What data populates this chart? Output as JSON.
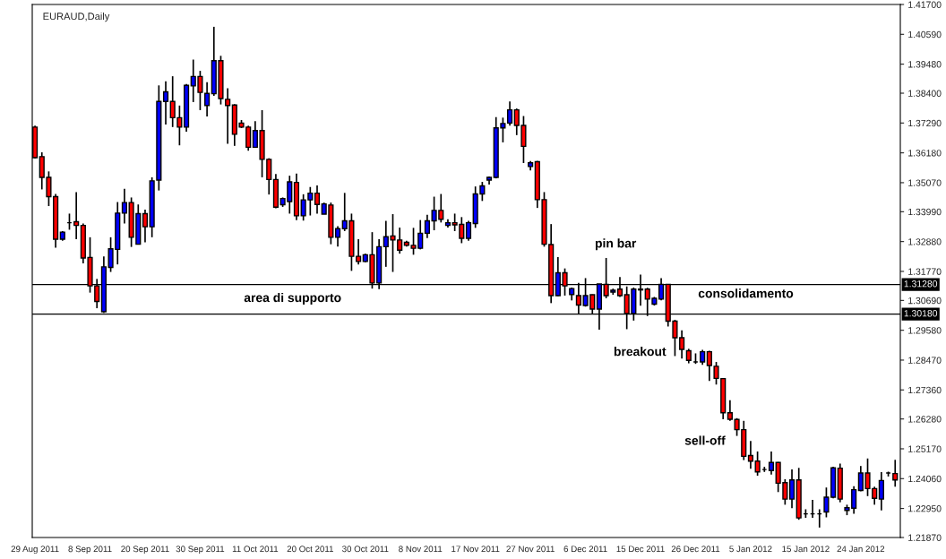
{
  "chart_data": {
    "type": "candlestick",
    "title": "EURAUD,Daily",
    "categories": [
      "29 Aug 2011",
      null,
      null,
      null,
      null,
      null,
      null,
      null,
      "8 Sep 2011",
      null,
      null,
      null,
      null,
      null,
      null,
      null,
      "20 Sep 2011",
      null,
      null,
      null,
      null,
      null,
      null,
      null,
      "30 Sep 2011",
      null,
      null,
      null,
      null,
      null,
      null,
      null,
      "11 Oct 2011",
      null,
      null,
      null,
      null,
      null,
      null,
      null,
      "20 Oct 2011",
      null,
      null,
      null,
      null,
      null,
      null,
      null,
      "30 Oct 2011",
      null,
      null,
      null,
      null,
      null,
      null,
      null,
      "8 Nov 2011",
      null,
      null,
      null,
      null,
      null,
      null,
      null,
      "17 Nov 2011",
      null,
      null,
      null,
      null,
      null,
      null,
      null,
      "27 Nov 2011",
      null,
      null,
      null,
      null,
      null,
      null,
      null,
      "6 Dec 2011",
      null,
      null,
      null,
      null,
      null,
      null,
      null,
      "15 Dec 2011",
      null,
      null,
      null,
      null,
      null,
      null,
      null,
      "26 Dec 2011",
      null,
      null,
      null,
      null,
      null,
      null,
      null,
      "5 Jan 2012",
      null,
      null,
      null,
      null,
      null,
      null,
      null,
      "15 Jan 2012",
      null,
      null,
      null,
      null,
      null,
      null,
      null,
      "24 Jan 2012",
      null,
      null,
      null,
      null,
      null
    ],
    "ohlc": [
      [
        1.3714,
        1.3719,
        1.3598,
        1.36
      ],
      [
        1.3604,
        1.362,
        1.3482,
        1.3527
      ],
      [
        1.3527,
        1.3549,
        1.342,
        1.3455
      ],
      [
        1.3455,
        1.3465,
        1.3265,
        1.3297
      ],
      [
        1.3297,
        1.3327,
        1.3291,
        1.3323
      ],
      [
        1.3358,
        1.3392,
        1.3332,
        1.3358
      ],
      [
        1.3362,
        1.3472,
        1.3297,
        1.3348
      ],
      [
        1.3348,
        1.3355,
        1.3207,
        1.3227
      ],
      [
        1.3229,
        1.3304,
        1.3098,
        1.3123
      ],
      [
        1.3123,
        1.3149,
        1.304,
        1.3065
      ],
      [
        1.3027,
        1.3233,
        1.3023,
        1.3194
      ],
      [
        1.3192,
        1.3304,
        1.3175,
        1.3261
      ],
      [
        1.3259,
        1.3435,
        1.3203,
        1.3394
      ],
      [
        1.3394,
        1.3484,
        1.3355,
        1.3433
      ],
      [
        1.3433,
        1.3452,
        1.3268,
        1.3304
      ],
      [
        1.3278,
        1.3426,
        1.3278,
        1.3392
      ],
      [
        1.3392,
        1.3407,
        1.3285,
        1.3343
      ],
      [
        1.3343,
        1.3527,
        1.3304,
        1.3514
      ],
      [
        1.3517,
        1.3869,
        1.3478,
        1.3809
      ],
      [
        1.3809,
        1.3884,
        1.3723,
        1.3845
      ],
      [
        1.3809,
        1.3903,
        1.3714,
        1.3749
      ],
      [
        1.3749,
        1.3794,
        1.3646,
        1.3714
      ],
      [
        1.3714,
        1.3874,
        1.3697,
        1.3869
      ],
      [
        1.3867,
        1.3965,
        1.3807,
        1.3902
      ],
      [
        1.3902,
        1.3923,
        1.3777,
        1.3843
      ],
      [
        1.3794,
        1.3881,
        1.3753,
        1.3839
      ],
      [
        1.3838,
        1.4087,
        1.383,
        1.3961
      ],
      [
        1.3961,
        1.3979,
        1.3798,
        1.382
      ],
      [
        1.3817,
        1.3858,
        1.3652,
        1.3794
      ],
      [
        1.3796,
        1.3799,
        1.3644,
        1.3687
      ],
      [
        1.3729,
        1.374,
        1.371,
        1.3714
      ],
      [
        1.3714,
        1.3719,
        1.3626,
        1.3639
      ],
      [
        1.3639,
        1.3736,
        1.3637,
        1.3701
      ],
      [
        1.3701,
        1.3777,
        1.3527,
        1.3594
      ],
      [
        1.3594,
        1.3598,
        1.3463,
        1.3519
      ],
      [
        1.3519,
        1.3539,
        1.3412,
        1.3416
      ],
      [
        1.3425,
        1.3452,
        1.3417,
        1.3448
      ],
      [
        1.3437,
        1.3533,
        1.3392,
        1.351
      ],
      [
        1.3508,
        1.3541,
        1.3368,
        1.3384
      ],
      [
        1.3384,
        1.3464,
        1.3366,
        1.3443
      ],
      [
        1.3443,
        1.3491,
        1.3385,
        1.3468
      ],
      [
        1.3468,
        1.3497,
        1.3392,
        1.3426
      ],
      [
        1.339,
        1.3433,
        1.339,
        1.3428
      ],
      [
        1.3424,
        1.3433,
        1.3278,
        1.3304
      ],
      [
        1.3304,
        1.3345,
        1.3269,
        1.3336
      ],
      [
        1.3336,
        1.3469,
        1.3327,
        1.3365
      ],
      [
        1.3365,
        1.3392,
        1.3179,
        1.3233
      ],
      [
        1.3233,
        1.3297,
        1.3203,
        1.3214
      ],
      [
        1.3214,
        1.3243,
        1.3211,
        1.3239
      ],
      [
        1.3239,
        1.3323,
        1.3113,
        1.3134
      ],
      [
        1.3134,
        1.3297,
        1.3111,
        1.3269
      ],
      [
        1.3269,
        1.3365,
        1.3194,
        1.3306
      ],
      [
        1.3309,
        1.339,
        1.3175,
        1.3294
      ],
      [
        1.3294,
        1.334,
        1.3243,
        1.3256
      ],
      [
        1.3285,
        1.3291,
        1.3269,
        1.3274
      ],
      [
        1.3274,
        1.3339,
        1.3239,
        1.3263
      ],
      [
        1.3263,
        1.3368,
        1.3259,
        1.3319
      ],
      [
        1.3319,
        1.3388,
        1.3301,
        1.3365
      ],
      [
        1.3365,
        1.3455,
        1.333,
        1.3404
      ],
      [
        1.3404,
        1.3465,
        1.3359,
        1.3371
      ],
      [
        1.3348,
        1.3371,
        1.334,
        1.3358
      ],
      [
        1.3358,
        1.3392,
        1.3327,
        1.335
      ],
      [
        1.3352,
        1.3379,
        1.3282,
        1.33
      ],
      [
        1.33,
        1.3365,
        1.3291,
        1.3358
      ],
      [
        1.3355,
        1.3493,
        1.3339,
        1.3465
      ],
      [
        1.3465,
        1.351,
        1.3439,
        1.3495
      ],
      [
        1.3517,
        1.353,
        1.35,
        1.3527
      ],
      [
        1.3527,
        1.3751,
        1.3523,
        1.3711
      ],
      [
        1.3711,
        1.3749,
        1.3657,
        1.3727
      ],
      [
        1.3729,
        1.3809,
        1.3719,
        1.3778
      ],
      [
        1.3778,
        1.3783,
        1.3684,
        1.372
      ],
      [
        1.372,
        1.3755,
        1.358,
        1.3642
      ],
      [
        1.3567,
        1.3588,
        1.3553,
        1.3581
      ],
      [
        1.3585,
        1.3588,
        1.3413,
        1.3444
      ],
      [
        1.3444,
        1.3472,
        1.3269,
        1.3278
      ],
      [
        1.3277,
        1.3353,
        1.3059,
        1.3087
      ],
      [
        1.3087,
        1.323,
        1.3085,
        1.3172
      ],
      [
        1.3172,
        1.3188,
        1.3087,
        1.3123
      ],
      [
        1.3091,
        1.3117,
        1.3069,
        1.3113
      ],
      [
        1.3087,
        1.3134,
        1.302,
        1.3052
      ],
      [
        1.305,
        1.3152,
        1.3046,
        1.3087
      ],
      [
        1.309,
        1.3091,
        1.302,
        1.3037
      ],
      [
        1.3037,
        1.313,
        1.296,
        1.313
      ],
      [
        1.3129,
        1.3227,
        1.3077,
        1.3087
      ],
      [
        1.31,
        1.3113,
        1.309,
        1.3107
      ],
      [
        1.3111,
        1.3156,
        1.3082,
        1.3087
      ],
      [
        1.309,
        1.3121,
        1.2962,
        1.302
      ],
      [
        1.302,
        1.3117,
        1.2994,
        1.3111
      ],
      [
        1.3111,
        1.3165,
        1.3049,
        1.3108
      ],
      [
        1.3111,
        1.3116,
        1.3011,
        1.3074
      ],
      [
        1.3055,
        1.3082,
        1.305,
        1.3077
      ],
      [
        1.3074,
        1.3152,
        1.3069,
        1.3129
      ],
      [
        1.3129,
        1.3129,
        1.2972,
        1.2992
      ],
      [
        1.2992,
        1.2997,
        1.2862,
        1.293
      ],
      [
        1.293,
        1.2958,
        1.2853,
        1.2887
      ],
      [
        1.2882,
        1.2889,
        1.2835,
        1.2846
      ],
      [
        1.284,
        1.2872,
        1.2833,
        1.284
      ],
      [
        1.284,
        1.2885,
        1.2829,
        1.2878
      ],
      [
        1.2878,
        1.2882,
        1.2769,
        1.2827
      ],
      [
        1.2824,
        1.284,
        1.2756,
        1.2779
      ],
      [
        1.2778,
        1.2779,
        1.2627,
        1.2651
      ],
      [
        1.2651,
        1.2698,
        1.2621,
        1.2627
      ],
      [
        1.2626,
        1.2631,
        1.2565,
        1.2588
      ],
      [
        1.2588,
        1.2621,
        1.2475,
        1.2489
      ],
      [
        1.2492,
        1.2546,
        1.2443,
        1.2471
      ],
      [
        1.2471,
        1.2507,
        1.2417,
        1.2431
      ],
      [
        1.244,
        1.245,
        1.2431,
        1.244
      ],
      [
        1.2436,
        1.2507,
        1.2421,
        1.2466
      ],
      [
        1.2466,
        1.2468,
        1.2356,
        1.2389
      ],
      [
        1.2391,
        1.2404,
        1.2309,
        1.233
      ],
      [
        1.233,
        1.244,
        1.2296,
        1.2401
      ],
      [
        1.2401,
        1.2446,
        1.2253,
        1.226
      ],
      [
        1.2275,
        1.2292,
        1.226,
        1.2275
      ],
      [
        1.2275,
        1.2327,
        1.226,
        1.2275
      ],
      [
        1.2275,
        1.2292,
        1.2224,
        1.2275
      ],
      [
        1.2282,
        1.2373,
        1.2262,
        1.2337
      ],
      [
        1.2337,
        1.245,
        1.2333,
        1.2446
      ],
      [
        1.2445,
        1.2462,
        1.2318,
        1.233
      ],
      [
        1.2288,
        1.2309,
        1.227,
        1.2298
      ],
      [
        1.2296,
        1.2378,
        1.2275,
        1.2365
      ],
      [
        1.2362,
        1.2453,
        1.2359,
        1.2427
      ],
      [
        1.2427,
        1.2481,
        1.2341,
        1.2369
      ],
      [
        1.2369,
        1.2376,
        1.2309,
        1.2333
      ],
      [
        1.233,
        1.243,
        1.2288,
        1.2399
      ],
      [
        1.2427,
        1.2432,
        1.2414,
        1.2427
      ],
      [
        1.2425,
        1.2476,
        1.2376,
        1.2401
      ]
    ],
    "colors": [
      "#ff0000",
      "#ff0000",
      "#ff0000",
      "#ff0000",
      "#0000ff",
      "#000000",
      "#ff0000",
      "#ff0000",
      "#ff0000",
      "#ff0000",
      "#0000ff",
      "#0000ff",
      "#0000ff",
      "#0000ff",
      "#ff0000",
      "#0000ff",
      "#ff0000",
      "#0000ff",
      "#0000ff",
      "#0000ff",
      "#ff0000",
      "#ff0000",
      "#0000ff",
      "#0000ff",
      "#ff0000",
      "#0000ff",
      "#0000ff",
      "#ff0000",
      "#ff0000",
      "#ff0000",
      "#ff0000",
      "#ff0000",
      "#0000ff",
      "#ff0000",
      "#ff0000",
      "#ff0000",
      "#0000ff",
      "#0000ff",
      "#ff0000",
      "#0000ff",
      "#0000ff",
      "#ff0000",
      "#0000ff",
      "#ff0000",
      "#0000ff",
      "#0000ff",
      "#ff0000",
      "#ff0000",
      "#0000ff",
      "#ff0000",
      "#0000ff",
      "#0000ff",
      "#ff0000",
      "#ff0000",
      "#ff0000",
      "#ff0000",
      "#0000ff",
      "#0000ff",
      "#0000ff",
      "#ff0000",
      "#0000ff",
      "#ff0000",
      "#ff0000",
      "#0000ff",
      "#0000ff",
      "#0000ff",
      "#0000ff",
      "#0000ff",
      "#0000ff",
      "#0000ff",
      "#ff0000",
      "#ff0000",
      "#0000ff",
      "#ff0000",
      "#ff0000",
      "#ff0000",
      "#0000ff",
      "#ff0000",
      "#0000ff",
      "#ff0000",
      "#0000ff",
      "#ff0000",
      "#0000ff",
      "#ff0000",
      "#0000ff",
      "#ff0000",
      "#ff0000",
      "#0000ff",
      "#ff0000",
      "#ff0000",
      "#0000ff",
      "#0000ff",
      "#ff0000",
      "#ff0000",
      "#ff0000",
      "#ff0000",
      "#000000",
      "#0000ff",
      "#ff0000",
      "#ff0000",
      "#ff0000",
      "#ff0000",
      "#ff0000",
      "#ff0000",
      "#ff0000",
      "#ff0000",
      "#000000",
      "#0000ff",
      "#ff0000",
      "#ff0000",
      "#0000ff",
      "#ff0000",
      "#000000",
      "#000000",
      "#000000",
      "#0000ff",
      "#0000ff",
      "#ff0000",
      "#0000ff",
      "#0000ff",
      "#0000ff",
      "#ff0000",
      "#ff0000",
      "#0000ff",
      "#000000",
      "#ff0000"
    ],
    "ylim": [
      1.2187,
      1.417
    ],
    "yticks": [
      {
        "value": 1.417,
        "label": "1.41700"
      },
      {
        "value": 1.4059,
        "label": "1.40590"
      },
      {
        "value": 1.3948,
        "label": "1.39480"
      },
      {
        "value": 1.384,
        "label": "1.38400"
      },
      {
        "value": 1.3729,
        "label": "1.37290"
      },
      {
        "value": 1.3618,
        "label": "1.36180"
      },
      {
        "value": 1.3507,
        "label": "1.35070"
      },
      {
        "value": 1.3399,
        "label": "1.33990"
      },
      {
        "value": 1.3288,
        "label": "1.32880"
      },
      {
        "value": 1.3177,
        "label": "1.31770"
      },
      {
        "value": 1.3069,
        "label": "1.30690"
      },
      {
        "value": 1.2958,
        "label": "1.29580"
      },
      {
        "value": 1.2847,
        "label": "1.28470"
      },
      {
        "value": 1.2736,
        "label": "1.27360"
      },
      {
        "value": 1.2628,
        "label": "1.26280"
      },
      {
        "value": 1.2517,
        "label": "1.25170"
      },
      {
        "value": 1.2406,
        "label": "1.24060"
      },
      {
        "value": 1.2295,
        "label": "1.22950"
      },
      {
        "value": 1.2187,
        "label": "1.21870"
      }
    ],
    "ref_lines": [
      {
        "axis": "y",
        "value": 1.3128,
        "label": "1.31280",
        "color": "#000000"
      },
      {
        "axis": "y",
        "value": 1.3018,
        "label": "1.30180",
        "color": "#000000"
      }
    ],
    "annotations": [
      "area di supporto",
      "pin bar",
      "consolidamento",
      "breakout",
      "sell-off"
    ],
    "grid": false,
    "legend": false
  }
}
